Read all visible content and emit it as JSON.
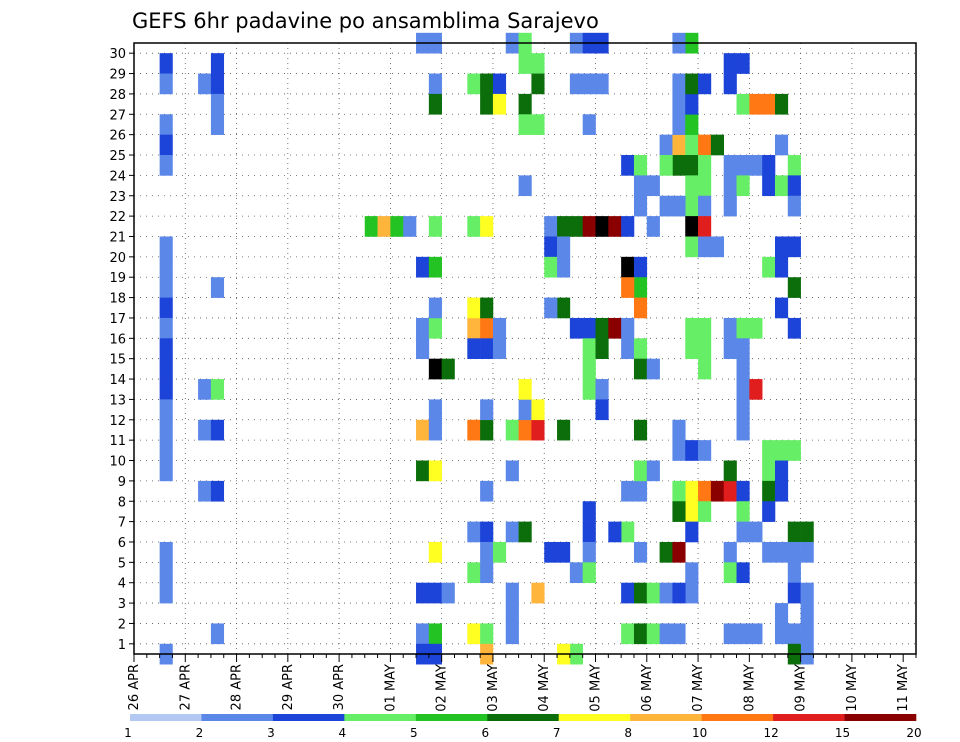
{
  "chart_data": {
    "type": "heatmap",
    "title": "GEFS 6hr padavine po ansamblima Sarajevo",
    "xlabel": "",
    "ylabel": "",
    "y_ticks": [
      "1",
      "2",
      "3",
      "4",
      "5",
      "6",
      "7",
      "8",
      "9",
      "10",
      "11",
      "12",
      "13",
      "14",
      "15",
      "16",
      "17",
      "18",
      "19",
      "20",
      "21",
      "22",
      "23",
      "24",
      "25",
      "26",
      "27",
      "28",
      "29",
      "30"
    ],
    "ylim": [
      0,
      30
    ],
    "x_tick_labels": [
      "26 APR",
      "27 APR",
      "28 APR",
      "29 APR",
      "30 APR",
      "01 MAY",
      "02 MAY",
      "03 MAY",
      "04 MAY",
      "05 MAY",
      "06 MAY",
      "07 MAY",
      "08 MAY",
      "09 MAY",
      "10 MAY",
      "11 MAY"
    ],
    "x_steps": 61,
    "steps_per_day": 4,
    "legend": {
      "position": "bottom",
      "labels": [
        "1",
        "2",
        "3",
        "4",
        "5",
        "6",
        "7",
        "8",
        "10",
        "12",
        "15",
        "20"
      ],
      "colors": [
        "#b4c8f4",
        "#5a87e8",
        "#1c44d8",
        "#66ee66",
        "#22c322",
        "#0b6e0b",
        "#ffff22",
        "#ffb43c",
        "#ff7814",
        "#e01e1e",
        "#8a0000"
      ]
    },
    "grid": true,
    "cells": [
      [
        2,
        29,
        2
      ],
      [
        2,
        28,
        1
      ],
      [
        2,
        26,
        1
      ],
      [
        2,
        25,
        2
      ],
      [
        2,
        24,
        1
      ],
      [
        2,
        20,
        1
      ],
      [
        2,
        19,
        1
      ],
      [
        2,
        18,
        1
      ],
      [
        2,
        17,
        2
      ],
      [
        2,
        16,
        1
      ],
      [
        2,
        15,
        2
      ],
      [
        2,
        14,
        2
      ],
      [
        2,
        13,
        2
      ],
      [
        2,
        12,
        1
      ],
      [
        2,
        11,
        1
      ],
      [
        2,
        10,
        1
      ],
      [
        2,
        9,
        1
      ],
      [
        2,
        5,
        1
      ],
      [
        2,
        4,
        1
      ],
      [
        2,
        3,
        1
      ],
      [
        2,
        0,
        1
      ],
      [
        5,
        28,
        1
      ],
      [
        5,
        13,
        1
      ],
      [
        5,
        11,
        1
      ],
      [
        5,
        8,
        1
      ],
      [
        6,
        29,
        2
      ],
      [
        6,
        28,
        2
      ],
      [
        6,
        27,
        1
      ],
      [
        6,
        26,
        1
      ],
      [
        6,
        18,
        1
      ],
      [
        6,
        13,
        3
      ],
      [
        6,
        11,
        2
      ],
      [
        6,
        8,
        2
      ],
      [
        6,
        1,
        1
      ],
      [
        18,
        21,
        4
      ],
      [
        19,
        21,
        7
      ],
      [
        20,
        21,
        4
      ],
      [
        21,
        21,
        1
      ],
      [
        22,
        30,
        1
      ],
      [
        23,
        30,
        1
      ],
      [
        22,
        19,
        2
      ],
      [
        23,
        19,
        4
      ],
      [
        22,
        16,
        1
      ],
      [
        23,
        16,
        3
      ],
      [
        22,
        15,
        1
      ],
      [
        22,
        11,
        7
      ],
      [
        22,
        9,
        5
      ],
      [
        23,
        9,
        6
      ],
      [
        22,
        3,
        2
      ],
      [
        23,
        3,
        2
      ],
      [
        22,
        1,
        1
      ],
      [
        23,
        1,
        4
      ],
      [
        22,
        0,
        2
      ],
      [
        23,
        0,
        2
      ],
      [
        23,
        28,
        1
      ],
      [
        23,
        27,
        5
      ],
      [
        23,
        21,
        3
      ],
      [
        23,
        17,
        1
      ],
      [
        23,
        14,
        11
      ],
      [
        24,
        14,
        5
      ],
      [
        23,
        12,
        1
      ],
      [
        23,
        11,
        1
      ],
      [
        23,
        5,
        6
      ],
      [
        24,
        3,
        1
      ],
      [
        26,
        28,
        3
      ],
      [
        27,
        28,
        5
      ],
      [
        28,
        28,
        2
      ],
      [
        27,
        27,
        5
      ],
      [
        28,
        27,
        6
      ],
      [
        26,
        21,
        3
      ],
      [
        27,
        21,
        6
      ],
      [
        26,
        16,
        7
      ],
      [
        27,
        16,
        8
      ],
      [
        28,
        16,
        1
      ],
      [
        26,
        15,
        2
      ],
      [
        27,
        15,
        2
      ],
      [
        28,
        15,
        1
      ],
      [
        26,
        11,
        8
      ],
      [
        27,
        11,
        5
      ],
      [
        27,
        12,
        1
      ],
      [
        27,
        8,
        1
      ],
      [
        26,
        6,
        1
      ],
      [
        27,
        6,
        2
      ],
      [
        27,
        5,
        1
      ],
      [
        26,
        4,
        3
      ],
      [
        27,
        4,
        1
      ],
      [
        26,
        1,
        6
      ],
      [
        27,
        1,
        3
      ],
      [
        27,
        0,
        7
      ],
      [
        26,
        17,
        6
      ],
      [
        27,
        17,
        5
      ],
      [
        29,
        30,
        1
      ],
      [
        30,
        30,
        3
      ],
      [
        30,
        29,
        3
      ],
      [
        31,
        29,
        3
      ],
      [
        31,
        28,
        5
      ],
      [
        30,
        27,
        5
      ],
      [
        30,
        26,
        3
      ],
      [
        31,
        26,
        3
      ],
      [
        30,
        23,
        1
      ],
      [
        29,
        11,
        3
      ],
      [
        30,
        11,
        8
      ],
      [
        31,
        11,
        9
      ],
      [
        30,
        12,
        1
      ],
      [
        31,
        12,
        6
      ],
      [
        30,
        13,
        6
      ],
      [
        29,
        9,
        1
      ],
      [
        29,
        6,
        1
      ],
      [
        30,
        6,
        5
      ],
      [
        28,
        5,
        3
      ],
      [
        29,
        1,
        1
      ],
      [
        29,
        2,
        1
      ],
      [
        29,
        3,
        1
      ],
      [
        32,
        21,
        1
      ],
      [
        33,
        21,
        5
      ],
      [
        34,
        21,
        5
      ],
      [
        35,
        21,
        10
      ],
      [
        36,
        21,
        11
      ],
      [
        37,
        21,
        10
      ],
      [
        38,
        21,
        2
      ],
      [
        32,
        20,
        2
      ],
      [
        33,
        20,
        1
      ],
      [
        32,
        19,
        3
      ],
      [
        33,
        19,
        1
      ],
      [
        33,
        17,
        5
      ],
      [
        32,
        17,
        1
      ],
      [
        34,
        16,
        2
      ],
      [
        35,
        16,
        2
      ],
      [
        36,
        16,
        5
      ],
      [
        37,
        16,
        10
      ],
      [
        35,
        15,
        3
      ],
      [
        36,
        15,
        5
      ],
      [
        35,
        14,
        3
      ],
      [
        35,
        13,
        3
      ],
      [
        36,
        13,
        1
      ],
      [
        36,
        12,
        2
      ],
      [
        33,
        11,
        5
      ],
      [
        34,
        30,
        1
      ],
      [
        35,
        30,
        2
      ],
      [
        36,
        30,
        2
      ],
      [
        34,
        28,
        1
      ],
      [
        35,
        28,
        1
      ],
      [
        36,
        28,
        1
      ],
      [
        35,
        26,
        1
      ],
      [
        32,
        5,
        2
      ],
      [
        33,
        5,
        2
      ],
      [
        34,
        4,
        1
      ],
      [
        35,
        6,
        2
      ],
      [
        35,
        7,
        2
      ],
      [
        35,
        5,
        1
      ],
      [
        35,
        4,
        3
      ],
      [
        38,
        6,
        3
      ],
      [
        37,
        6,
        2
      ],
      [
        31,
        3,
        7
      ],
      [
        34,
        0,
        3
      ],
      [
        33,
        0,
        6
      ],
      [
        38,
        24,
        2
      ],
      [
        39,
        24,
        3
      ],
      [
        39,
        23,
        1
      ],
      [
        40,
        23,
        1
      ],
      [
        39,
        22,
        1
      ],
      [
        41,
        22,
        1
      ],
      [
        40,
        21,
        1
      ],
      [
        38,
        19,
        11
      ],
      [
        39,
        19,
        2
      ],
      [
        39,
        18,
        4
      ],
      [
        38,
        18,
        8
      ],
      [
        39,
        17,
        8
      ],
      [
        38,
        16,
        1
      ],
      [
        38,
        15,
        1
      ],
      [
        39,
        15,
        3
      ],
      [
        39,
        14,
        5
      ],
      [
        40,
        14,
        1
      ],
      [
        38,
        8,
        1
      ],
      [
        39,
        8,
        1
      ],
      [
        39,
        9,
        3
      ],
      [
        40,
        9,
        1
      ],
      [
        38,
        3,
        2
      ],
      [
        39,
        3,
        5
      ],
      [
        40,
        3,
        3
      ],
      [
        41,
        3,
        1
      ],
      [
        38,
        1,
        3
      ],
      [
        39,
        1,
        5
      ],
      [
        40,
        1,
        3
      ],
      [
        39,
        11,
        5
      ],
      [
        39,
        5,
        1
      ],
      [
        41,
        25,
        1
      ],
      [
        42,
        25,
        7
      ],
      [
        43,
        25,
        3
      ],
      [
        42,
        24,
        5
      ],
      [
        43,
        24,
        5
      ],
      [
        41,
        24,
        3
      ],
      [
        43,
        23,
        3
      ],
      [
        44,
        23,
        3
      ],
      [
        43,
        22,
        3
      ],
      [
        44,
        22,
        1
      ],
      [
        42,
        22,
        1
      ],
      [
        43,
        21,
        11
      ],
      [
        44,
        21,
        9
      ],
      [
        42,
        26,
        1
      ],
      [
        43,
        26,
        4
      ],
      [
        42,
        27,
        1
      ],
      [
        43,
        27,
        2
      ],
      [
        42,
        28,
        1
      ],
      [
        43,
        28,
        5
      ],
      [
        44,
        28,
        2
      ],
      [
        43,
        30,
        4
      ],
      [
        42,
        30,
        1
      ],
      [
        44,
        25,
        8
      ],
      [
        44,
        24,
        3
      ],
      [
        45,
        25,
        5
      ],
      [
        43,
        20,
        3
      ],
      [
        44,
        20,
        1
      ],
      [
        45,
        20,
        1
      ],
      [
        43,
        16,
        3
      ],
      [
        44,
        16,
        3
      ],
      [
        43,
        15,
        3
      ],
      [
        44,
        15,
        3
      ],
      [
        44,
        14,
        3
      ],
      [
        42,
        10,
        1
      ],
      [
        43,
        10,
        2
      ],
      [
        44,
        10,
        1
      ],
      [
        42,
        11,
        1
      ],
      [
        43,
        8,
        6
      ],
      [
        44,
        8,
        8
      ],
      [
        42,
        8,
        3
      ],
      [
        45,
        8,
        10
      ],
      [
        46,
        8,
        9
      ],
      [
        43,
        7,
        6
      ],
      [
        42,
        7,
        5
      ],
      [
        44,
        7,
        3
      ],
      [
        43,
        6,
        2
      ],
      [
        41,
        5,
        5
      ],
      [
        42,
        5,
        10
      ],
      [
        43,
        4,
        1
      ],
      [
        43,
        3,
        1
      ],
      [
        42,
        3,
        2
      ],
      [
        41,
        1,
        1
      ],
      [
        42,
        1,
        1
      ],
      [
        46,
        29,
        2
      ],
      [
        47,
        29,
        2
      ],
      [
        46,
        28,
        2
      ],
      [
        47,
        27,
        3
      ],
      [
        48,
        27,
        8
      ],
      [
        49,
        27,
        8
      ],
      [
        50,
        27,
        5
      ],
      [
        46,
        24,
        1
      ],
      [
        47,
        24,
        1
      ],
      [
        48,
        24,
        1
      ],
      [
        46,
        23,
        1
      ],
      [
        47,
        23,
        3
      ],
      [
        46,
        22,
        1
      ],
      [
        46,
        16,
        1
      ],
      [
        47,
        16,
        3
      ],
      [
        48,
        16,
        3
      ],
      [
        46,
        15,
        1
      ],
      [
        47,
        15,
        1
      ],
      [
        47,
        14,
        1
      ],
      [
        47,
        13,
        1
      ],
      [
        48,
        13,
        9
      ],
      [
        47,
        12,
        1
      ],
      [
        47,
        11,
        1
      ],
      [
        46,
        9,
        5
      ],
      [
        47,
        8,
        2
      ],
      [
        47,
        7,
        3
      ],
      [
        46,
        5,
        1
      ],
      [
        46,
        4,
        3
      ],
      [
        47,
        4,
        2
      ],
      [
        47,
        6,
        1
      ],
      [
        46,
        1,
        1
      ],
      [
        47,
        1,
        1
      ],
      [
        48,
        1,
        1
      ],
      [
        49,
        23,
        2
      ],
      [
        50,
        23,
        3
      ],
      [
        49,
        24,
        2
      ],
      [
        50,
        25,
        1
      ],
      [
        51,
        24,
        3
      ],
      [
        51,
        23,
        2
      ],
      [
        51,
        22,
        1
      ],
      [
        50,
        20,
        2
      ],
      [
        51,
        20,
        2
      ],
      [
        49,
        19,
        3
      ],
      [
        50,
        19,
        2
      ],
      [
        51,
        18,
        5
      ],
      [
        50,
        17,
        2
      ],
      [
        51,
        16,
        2
      ],
      [
        51,
        10,
        3
      ],
      [
        50,
        10,
        3
      ],
      [
        49,
        10,
        3
      ],
      [
        49,
        9,
        3
      ],
      [
        50,
        9,
        2
      ],
      [
        49,
        8,
        5
      ],
      [
        50,
        8,
        2
      ],
      [
        49,
        7,
        2
      ],
      [
        48,
        6,
        1
      ],
      [
        51,
        6,
        5
      ],
      [
        52,
        6,
        5
      ],
      [
        49,
        5,
        1
      ],
      [
        50,
        5,
        1
      ],
      [
        51,
        5,
        1
      ],
      [
        51,
        4,
        1
      ],
      [
        50,
        2,
        1
      ],
      [
        50,
        1,
        1
      ],
      [
        51,
        1,
        1
      ],
      [
        52,
        0,
        1
      ],
      [
        51,
        0,
        5
      ],
      [
        51,
        3,
        2
      ],
      [
        52,
        3,
        1
      ],
      [
        52,
        1,
        1
      ],
      [
        52,
        2,
        1
      ],
      [
        52,
        5,
        1
      ]
    ]
  }
}
